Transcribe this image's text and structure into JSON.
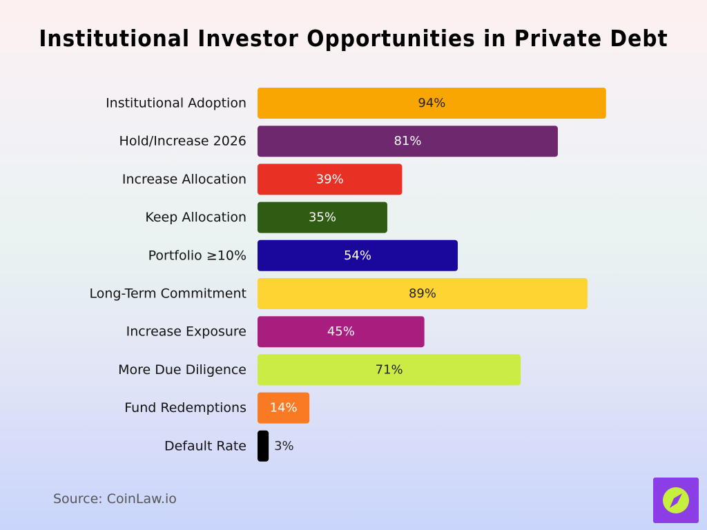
{
  "title": "Institutional Investor Opportunities in Private Debt",
  "source": "Source: CoinLaw.io",
  "colors": {
    "logo_bg": "#8c3ee6",
    "logo_circle": "#c6ef3e"
  },
  "chart_data": {
    "type": "bar",
    "orientation": "horizontal",
    "title": "Institutional Investor Opportunities in Private Debt",
    "xlim": [
      0,
      100
    ],
    "grid": false,
    "unit": "%",
    "bars": [
      {
        "label": "Institutional Adoption",
        "value": 94,
        "value_label": "94%",
        "color": "#f9a602",
        "text_color": "#222222"
      },
      {
        "label": "Hold/Increase 2026",
        "value": 81,
        "value_label": "81%",
        "color": "#6e296e",
        "text_color": "#ffffff"
      },
      {
        "label": "Increase Allocation",
        "value": 39,
        "value_label": "39%",
        "color": "#e83025",
        "text_color": "#ffffff"
      },
      {
        "label": "Keep Allocation",
        "value": 35,
        "value_label": "35%",
        "color": "#2f5b12",
        "text_color": "#ffffff"
      },
      {
        "label": "Portfolio ≥10%",
        "value": 54,
        "value_label": "54%",
        "color": "#1a079b",
        "text_color": "#ffffff"
      },
      {
        "label": "Long-Term Commitment",
        "value": 89,
        "value_label": "89%",
        "color": "#fdd431",
        "text_color": "#222222"
      },
      {
        "label": "Increase Exposure",
        "value": 45,
        "value_label": "45%",
        "color": "#a91d7e",
        "text_color": "#ffffff"
      },
      {
        "label": "More Due Diligence",
        "value": 71,
        "value_label": "71%",
        "color": "#cbec45",
        "text_color": "#222222"
      },
      {
        "label": "Fund Redemptions",
        "value": 14,
        "value_label": "14%",
        "color": "#fa7a23",
        "text_color": "#ffffff"
      },
      {
        "label": "Default Rate",
        "value": 3,
        "value_label": "3%",
        "color": "#000000",
        "text_color": "#222222"
      }
    ]
  }
}
